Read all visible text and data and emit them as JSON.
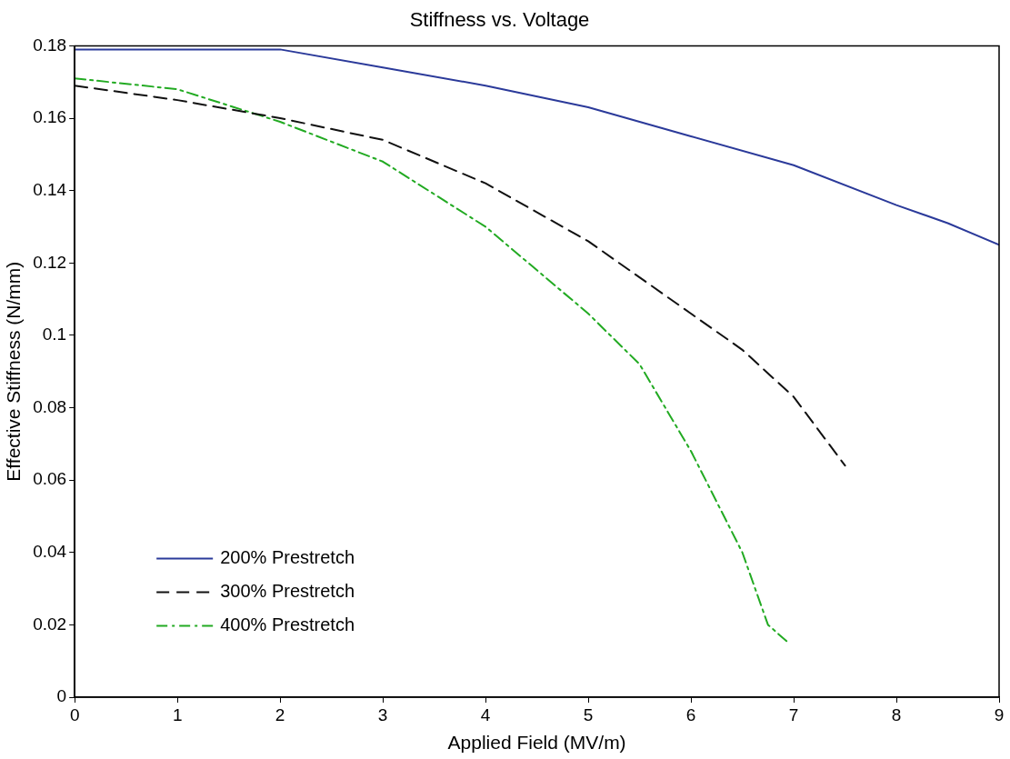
{
  "chart_data": {
    "type": "line",
    "title": "Stiffness vs. Voltage",
    "xlabel": "Applied Field (MV/m)",
    "ylabel": "Effective Stiffness (N/mm)",
    "xlim": [
      0,
      9
    ],
    "xticks": [
      0,
      1,
      2,
      3,
      4,
      5,
      6,
      7,
      8,
      9
    ],
    "ylim": [
      0,
      0.18
    ],
    "yticks": [
      0,
      0.02,
      0.04,
      0.06,
      0.08,
      0.1,
      0.12,
      0.14,
      0.16,
      0.18
    ],
    "grid": false,
    "legend": "bottom left",
    "marker": "none",
    "series": [
      {
        "name": "200% Prestretch",
        "color": "#2b3a9a",
        "line_style": "solid",
        "x": [
          0,
          1,
          2,
          3,
          4,
          5,
          6,
          7,
          8,
          8.5,
          9
        ],
        "values": [
          0.179,
          0.179,
          0.179,
          0.174,
          0.169,
          0.163,
          0.155,
          0.147,
          0.136,
          0.131,
          0.125
        ]
      },
      {
        "name": "300% Prestretch",
        "color": "#111111",
        "line_style": "dashed",
        "x": [
          0,
          1,
          2,
          3,
          4,
          5,
          6,
          6.5,
          7,
          7.5
        ],
        "values": [
          0.169,
          0.165,
          0.16,
          0.154,
          0.142,
          0.126,
          0.106,
          0.096,
          0.083,
          0.064
        ]
      },
      {
        "name": "400% Prestretch",
        "color": "#22aa22",
        "line_style": "dashdot",
        "x": [
          0,
          1,
          2,
          3,
          4,
          5,
          5.5,
          6,
          6.5,
          6.75,
          6.95
        ],
        "values": [
          0.171,
          0.168,
          0.159,
          0.148,
          0.13,
          0.106,
          0.092,
          0.068,
          0.04,
          0.02,
          0.015
        ]
      }
    ]
  }
}
